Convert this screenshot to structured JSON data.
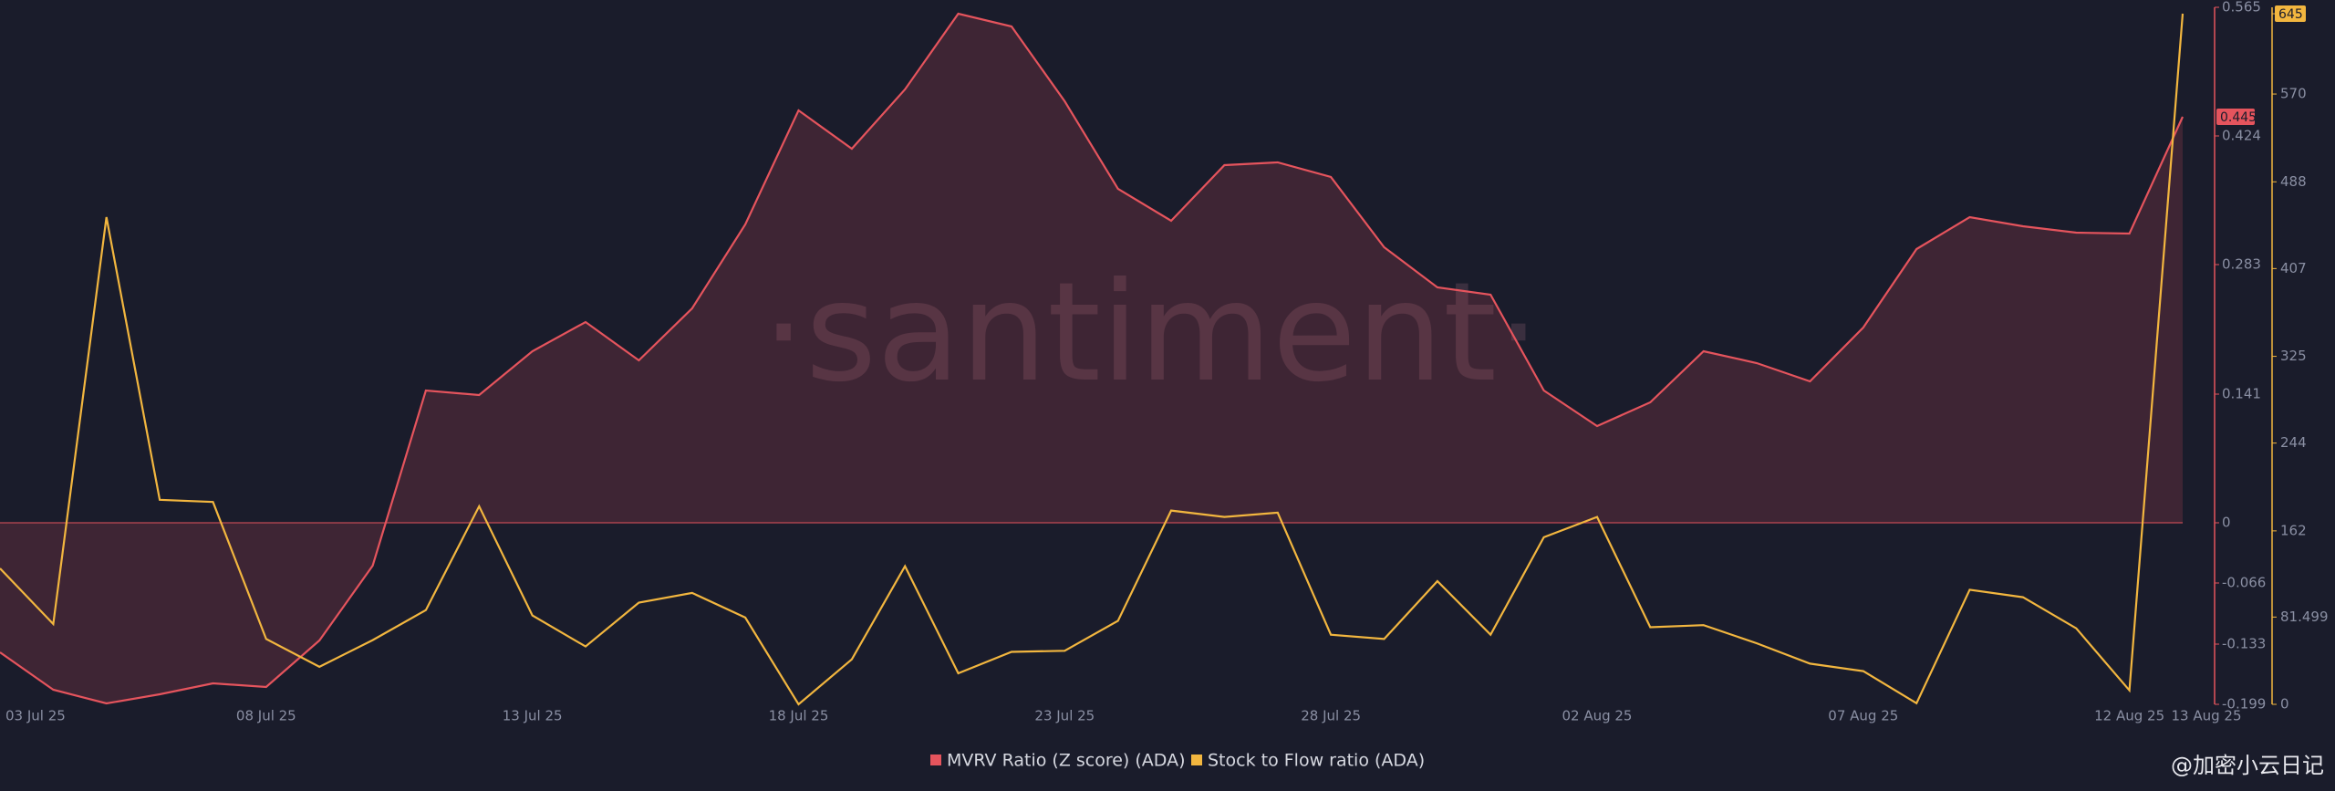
{
  "chart_data": {
    "type": "line",
    "watermark": "·santiment·",
    "footer": "@加密小云日记",
    "categories": [
      "03 Jul 25",
      null,
      null,
      null,
      null,
      "08 Jul 25",
      null,
      null,
      null,
      null,
      "13 Jul 25",
      null,
      null,
      null,
      null,
      "18 Jul 25",
      null,
      null,
      null,
      null,
      "23 Jul 25",
      null,
      null,
      null,
      null,
      "28 Jul 25",
      null,
      null,
      null,
      null,
      "02 Aug 25",
      null,
      null,
      null,
      null,
      "07 Aug 25",
      null,
      null,
      null,
      null,
      "12 Aug 25",
      "13 Aug 25"
    ],
    "series": [
      {
        "name": "MVRV Ratio (Z score) (ADA)",
        "color": "#e5545d",
        "axis": "y",
        "fill": true,
        "values": [
          -0.142,
          -0.183,
          -0.198,
          -0.188,
          -0.176,
          -0.18,
          -0.129,
          -0.047,
          0.145,
          0.14,
          0.188,
          0.22,
          0.178,
          0.235,
          0.327,
          0.452,
          0.41,
          0.475,
          0.558,
          0.544,
          0.462,
          0.366,
          0.331,
          0.392,
          0.395,
          0.379,
          0.302,
          0.258,
          0.25,
          0.145,
          0.106,
          0.132,
          0.188,
          0.175,
          0.155,
          0.214,
          0.3,
          0.335,
          0.325,
          0.318,
          0.317,
          0.445
        ]
      },
      {
        "name": "Stock to Flow ratio (ADA)",
        "color": "#f2b63f",
        "axis": "y2",
        "fill": false,
        "values": [
          127,
          75,
          455,
          191,
          189,
          61,
          35,
          60,
          88,
          185,
          83,
          54,
          95,
          104,
          81,
          0,
          42,
          129,
          29,
          49,
          50,
          78,
          181,
          175,
          179,
          65,
          61,
          115,
          65,
          156,
          175,
          72,
          74,
          57,
          38,
          31,
          1,
          107,
          100,
          71,
          13,
          645
        ]
      }
    ],
    "ylim": [
      -0.199,
      0.565
    ],
    "yticks": [
      0.565,
      0.424,
      0.283,
      0.141,
      0,
      -0.066,
      -0.133,
      -0.199
    ],
    "y2lim": [
      0,
      651
    ],
    "y2ticks": [
      645,
      570,
      488,
      407,
      325,
      244,
      162,
      81.499,
      0
    ]
  }
}
